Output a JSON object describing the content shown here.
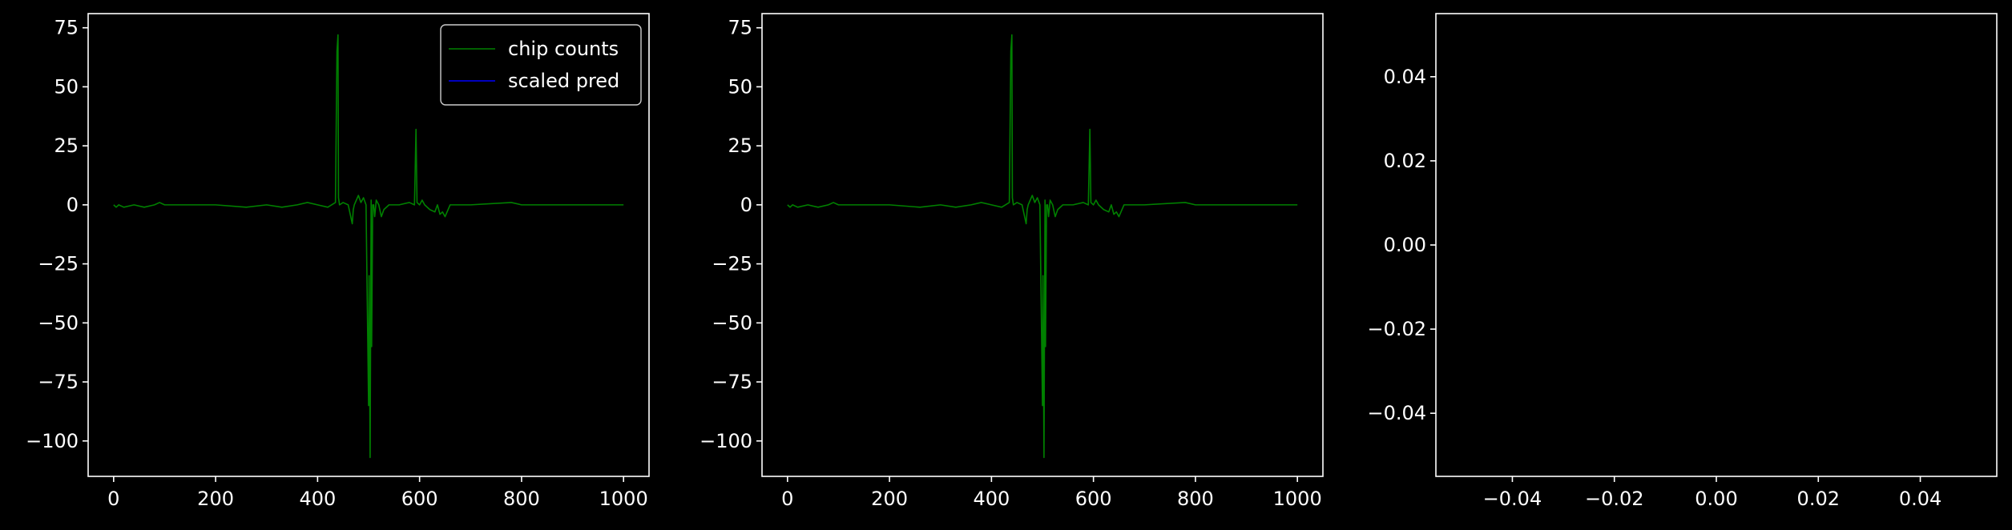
{
  "chart_data": [
    {
      "type": "line",
      "title": "",
      "xlabel": "",
      "ylabel": "",
      "xlim": [
        -50,
        1050
      ],
      "ylim": [
        -115,
        81
      ],
      "xticks": [
        0,
        200,
        400,
        600,
        800,
        1000
      ],
      "xtick_labels": [
        "0",
        "200",
        "400",
        "600",
        "800",
        "1000"
      ],
      "yticks": [
        75,
        50,
        25,
        0,
        -25,
        -50,
        -75,
        -100
      ],
      "ytick_labels": [
        "75",
        "50",
        "25",
        "0",
        "−25",
        "−50",
        "−75",
        "−100"
      ],
      "grid": false,
      "legend": {
        "location": "top-right",
        "entries": [
          {
            "label": "chip counts",
            "color": "#008000"
          },
          {
            "label": "scaled pred",
            "color": "#0000ff"
          }
        ]
      },
      "series": [
        {
          "name": "chip counts",
          "color": "#008000",
          "x": [
            0,
            5,
            10,
            20,
            40,
            60,
            80,
            90,
            100,
            150,
            200,
            260,
            300,
            330,
            360,
            380,
            400,
            420,
            435,
            438,
            440,
            441,
            443,
            450,
            460,
            468,
            470,
            472,
            480,
            485,
            490,
            495,
            500,
            501,
            503,
            505,
            506,
            508,
            510,
            512,
            515,
            520,
            525,
            530,
            540,
            560,
            580,
            590,
            593,
            595,
            600,
            605,
            610,
            620,
            630,
            635,
            640,
            645,
            650,
            660,
            700,
            780,
            800,
            850,
            900,
            950,
            1000
          ],
          "y": [
            0,
            -1,
            0,
            -1,
            0,
            -1,
            0,
            1,
            0,
            0,
            0,
            -1,
            0,
            -1,
            0,
            1,
            0,
            -1,
            1,
            65,
            72,
            3,
            0,
            1,
            0,
            -8,
            -2,
            0,
            4,
            1,
            3,
            0,
            -85,
            -30,
            -107,
            2,
            -60,
            0,
            0,
            -5,
            2,
            0,
            -5,
            -2,
            0,
            0,
            1,
            0,
            32,
            1,
            0,
            2,
            0,
            -2,
            -3,
            0,
            -4,
            -3,
            -5,
            0,
            0,
            1,
            0,
            0,
            0,
            0,
            0
          ]
        },
        {
          "name": "scaled pred",
          "color": "#0000ff",
          "x": [],
          "y": []
        }
      ]
    },
    {
      "type": "line",
      "title": "",
      "xlabel": "",
      "ylabel": "",
      "xlim": [
        -50,
        1050
      ],
      "ylim": [
        -115,
        81
      ],
      "xticks": [
        0,
        200,
        400,
        600,
        800,
        1000
      ],
      "xtick_labels": [
        "0",
        "200",
        "400",
        "600",
        "800",
        "1000"
      ],
      "yticks": [
        75,
        50,
        25,
        0,
        -25,
        -50,
        -75,
        -100
      ],
      "ytick_labels": [
        "75",
        "50",
        "25",
        "0",
        "−25",
        "−50",
        "−75",
        "−100"
      ],
      "grid": false,
      "series": [
        {
          "color": "#008000",
          "x": [
            0,
            5,
            10,
            20,
            40,
            60,
            80,
            90,
            100,
            150,
            200,
            260,
            300,
            330,
            360,
            380,
            400,
            420,
            435,
            438,
            440,
            441,
            443,
            450,
            460,
            468,
            470,
            472,
            480,
            485,
            490,
            495,
            500,
            501,
            503,
            505,
            506,
            508,
            510,
            512,
            515,
            520,
            525,
            530,
            540,
            560,
            580,
            590,
            593,
            595,
            600,
            605,
            610,
            620,
            630,
            635,
            640,
            645,
            650,
            660,
            700,
            780,
            800,
            850,
            900,
            950,
            1000
          ],
          "y": [
            0,
            -1,
            0,
            -1,
            0,
            -1,
            0,
            1,
            0,
            0,
            0,
            -1,
            0,
            -1,
            0,
            1,
            0,
            -1,
            1,
            65,
            72,
            3,
            0,
            1,
            0,
            -8,
            -2,
            0,
            4,
            1,
            3,
            0,
            -85,
            -30,
            -107,
            2,
            -60,
            0,
            0,
            -5,
            2,
            0,
            -5,
            -2,
            0,
            0,
            1,
            0,
            32,
            1,
            0,
            2,
            0,
            -2,
            -3,
            0,
            -4,
            -3,
            -5,
            0,
            0,
            1,
            0,
            0,
            0,
            0,
            0
          ]
        }
      ]
    },
    {
      "type": "line",
      "title": "",
      "xlabel": "",
      "ylabel": "",
      "xlim": [
        -0.055,
        0.055
      ],
      "ylim": [
        -0.055,
        0.055
      ],
      "xticks": [
        -0.04,
        -0.02,
        0.0,
        0.02,
        0.04
      ],
      "xtick_labels": [
        "−0.04",
        "−0.02",
        "0.00",
        "0.02",
        "0.04"
      ],
      "yticks": [
        0.04,
        0.02,
        0.0,
        -0.02,
        -0.04
      ],
      "ytick_labels": [
        "0.04",
        "0.02",
        "0.00",
        "−0.02",
        "−0.04"
      ],
      "grid": false,
      "series": []
    }
  ]
}
